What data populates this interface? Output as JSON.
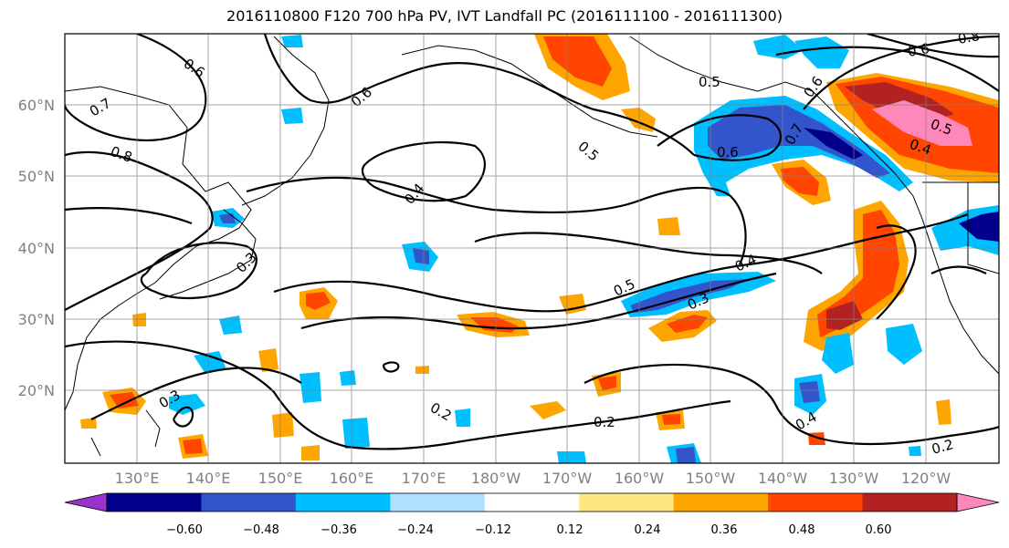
{
  "title": "2016110800 F120 700 hPa PV, IVT Landfall PC (2016111100 - 2016111300)",
  "lat_labels": [
    "60°N",
    "50°N",
    "40°N",
    "30°N",
    "20°N"
  ],
  "lon_labels": [
    "130°E",
    "140°E",
    "150°E",
    "160°E",
    "170°E",
    "180°W",
    "170°W",
    "160°W",
    "150°W",
    "140°W",
    "130°W",
    "120°W"
  ],
  "colorbar": {
    "tick_labels": [
      "−0.60",
      "−0.48",
      "−0.36",
      "−0.24",
      "−0.12",
      "0.12",
      "0.24",
      "0.36",
      "0.48",
      "0.60"
    ],
    "colors": [
      "#9933cc",
      "#00008b",
      "#3355cc",
      "#00bfff",
      "#b0e0ff",
      "#ffffff",
      "#ffe680",
      "#ffa500",
      "#ff4500",
      "#b22222",
      "#ff88bb"
    ]
  },
  "contour_labels": [
    "0.6",
    "0.7",
    "0.8",
    "0.5",
    "0.6",
    "0.4",
    "0.3",
    "0.3",
    "0.5",
    "0.4",
    "0.3",
    "0.2",
    "0.2",
    "0.4",
    "0.2",
    "0.6",
    "0.7",
    "0.6",
    "0.4",
    "0.5",
    "0.6",
    "0.8",
    "0.5"
  ]
}
